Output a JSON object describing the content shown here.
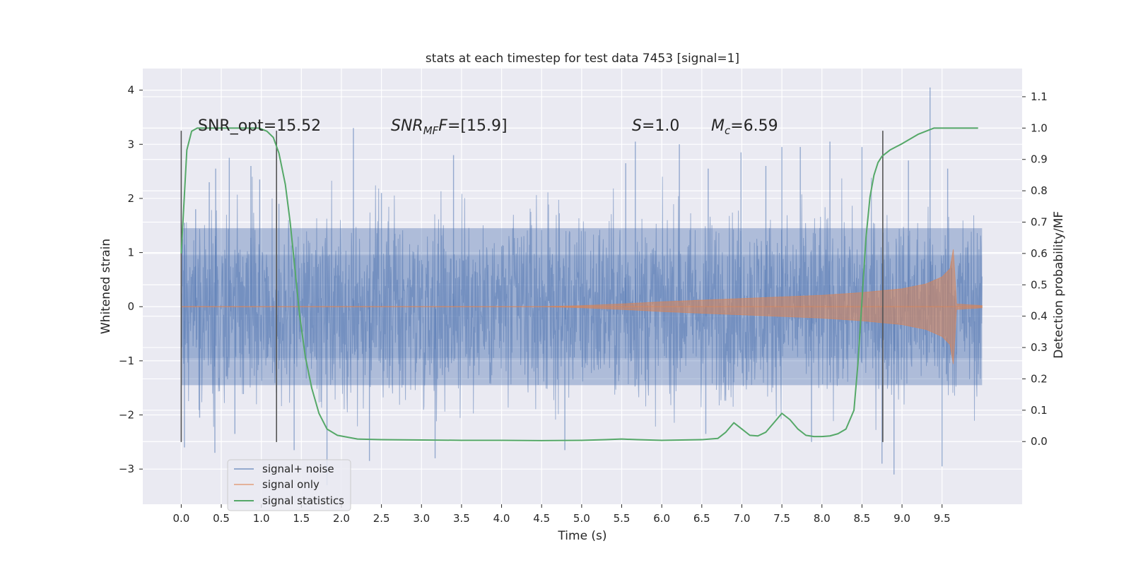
{
  "chart_data": {
    "type": "line",
    "title": "stats at each timestep for test data 7453 [signal=1]",
    "xlabel": "Time (s)",
    "ylabel": "Whitened strain",
    "ylabel_right": "Detection probability/MF",
    "xlim": [
      -0.48,
      10.5
    ],
    "ylim": [
      -3.65,
      4.4
    ],
    "ylim_right": [
      -0.2,
      1.19
    ],
    "x_ticks": [
      0.0,
      0.5,
      1.0,
      1.5,
      2.0,
      2.5,
      3.0,
      3.5,
      4.0,
      4.5,
      5.0,
      5.5,
      6.0,
      6.5,
      7.0,
      7.5,
      8.0,
      8.5,
      9.0,
      9.5
    ],
    "y_ticks": [
      -3,
      -2,
      -1,
      0,
      1,
      2,
      3,
      4
    ],
    "y_ticks_right": [
      0.0,
      0.1,
      0.2,
      0.3,
      0.4,
      0.5,
      0.6,
      0.7,
      0.8,
      0.9,
      1.0,
      1.1
    ],
    "grid": true,
    "legend_position": "lower-left",
    "annotations": {
      "snr_opt": "SNR_opt=15.52",
      "snr_mf_main": "SNR",
      "snr_mf_sub": "MF",
      "snr_mf_value": "=[15.9]",
      "s_main": "S",
      "s_value": "=1.0",
      "mc_main": "M",
      "mc_sub": "c",
      "mc_value": "=6.59"
    },
    "vertical_markers": [
      {
        "x": 0.0,
        "ymin": -2.5,
        "ymax": 3.25
      },
      {
        "x": 1.19,
        "ymin": -2.5,
        "ymax": 3.25
      },
      {
        "x": 8.76,
        "ymin": -2.5,
        "ymax": 3.25
      }
    ],
    "noise_spikes": [
      {
        "x": 0.04,
        "y": 1.55
      },
      {
        "x": 0.18,
        "y": 1.8
      },
      {
        "x": 0.35,
        "y": 2.3
      },
      {
        "x": 0.43,
        "y": 2.55
      },
      {
        "x": 0.6,
        "y": 2.75
      },
      {
        "x": 0.87,
        "y": 2.6
      },
      {
        "x": 0.98,
        "y": 2.35
      },
      {
        "x": 1.22,
        "y": 1.9
      },
      {
        "x": 2.15,
        "y": 3.3
      },
      {
        "x": 2.5,
        "y": 2.1
      },
      {
        "x": 3.4,
        "y": 2.8
      },
      {
        "x": 5.55,
        "y": 2.65
      },
      {
        "x": 5.67,
        "y": 3.05
      },
      {
        "x": 6.22,
        "y": 3.0
      },
      {
        "x": 6.58,
        "y": 2.55
      },
      {
        "x": 6.99,
        "y": 2.85
      },
      {
        "x": 7.3,
        "y": 2.6
      },
      {
        "x": 7.5,
        "y": 2.95
      },
      {
        "x": 7.73,
        "y": 2.95
      },
      {
        "x": 8.1,
        "y": 3.05
      },
      {
        "x": 8.5,
        "y": 2.95
      },
      {
        "x": 9.08,
        "y": 2.7
      },
      {
        "x": 9.35,
        "y": 4.05
      },
      {
        "x": 9.57,
        "y": 2.55
      },
      {
        "x": 0.04,
        "y": -2.6
      },
      {
        "x": 0.23,
        "y": -2.05
      },
      {
        "x": 0.42,
        "y": -2.7
      },
      {
        "x": 0.67,
        "y": -2.35
      },
      {
        "x": 1.41,
        "y": -2.65
      },
      {
        "x": 1.82,
        "y": -3.3
      },
      {
        "x": 2.35,
        "y": -2.85
      },
      {
        "x": 3.17,
        "y": -2.8
      },
      {
        "x": 4.79,
        "y": -2.65
      },
      {
        "x": 6.55,
        "y": -2.35
      },
      {
        "x": 7.87,
        "y": -2.5
      },
      {
        "x": 8.75,
        "y": -2.9
      },
      {
        "x": 8.9,
        "y": -3.1
      },
      {
        "x": 9.5,
        "y": -2.95
      }
    ],
    "series": [
      {
        "name": "signal+ noise",
        "color": "#4c72b0",
        "x_range": [
          0.0,
          10.0
        ],
        "typical_amplitude": 1.35
      },
      {
        "name": "signal only",
        "color": "#dd8452",
        "x_range": [
          0.0,
          10.0
        ],
        "envelope": {
          "x": [
            0.0,
            4.5,
            5.0,
            5.5,
            6.0,
            6.5,
            7.0,
            7.5,
            8.0,
            8.5,
            9.0,
            9.3,
            9.5,
            9.6,
            9.65,
            9.67,
            10.0
          ],
          "y": [
            0.0,
            0.0,
            0.02,
            0.05,
            0.09,
            0.12,
            0.15,
            0.18,
            0.21,
            0.26,
            0.33,
            0.42,
            0.55,
            0.7,
            1.15,
            0.05,
            0.02
          ]
        }
      },
      {
        "name": "signal statistics",
        "color": "#55a868",
        "axis": "right",
        "x": [
          0.0,
          0.07,
          0.13,
          0.2,
          0.3,
          0.5,
          0.8,
          0.97,
          1.07,
          1.15,
          1.22,
          1.3,
          1.36,
          1.42,
          1.48,
          1.55,
          1.63,
          1.72,
          1.82,
          1.95,
          2.2,
          2.5,
          3.0,
          3.5,
          4.0,
          4.5,
          5.0,
          5.3,
          5.5,
          5.7,
          6.0,
          6.5,
          6.7,
          6.8,
          6.9,
          7.0,
          7.1,
          7.2,
          7.3,
          7.4,
          7.5,
          7.6,
          7.7,
          7.8,
          7.9,
          8.0,
          8.1,
          8.2,
          8.3,
          8.4,
          8.45,
          8.5,
          8.55,
          8.6,
          8.65,
          8.7,
          8.75,
          8.85,
          9.0,
          9.2,
          9.4,
          9.6,
          9.95
        ],
        "y": [
          0.6,
          0.93,
          0.99,
          1.0,
          1.0,
          1.0,
          1.0,
          1.0,
          0.99,
          0.97,
          0.92,
          0.82,
          0.7,
          0.55,
          0.4,
          0.27,
          0.17,
          0.09,
          0.04,
          0.02,
          0.008,
          0.006,
          0.005,
          0.004,
          0.004,
          0.003,
          0.004,
          0.006,
          0.008,
          0.006,
          0.004,
          0.006,
          0.01,
          0.03,
          0.06,
          0.04,
          0.02,
          0.018,
          0.03,
          0.06,
          0.09,
          0.07,
          0.04,
          0.02,
          0.016,
          0.016,
          0.018,
          0.025,
          0.04,
          0.1,
          0.25,
          0.45,
          0.65,
          0.78,
          0.85,
          0.89,
          0.91,
          0.93,
          0.95,
          0.98,
          1.0,
          1.0,
          1.0
        ]
      }
    ]
  }
}
